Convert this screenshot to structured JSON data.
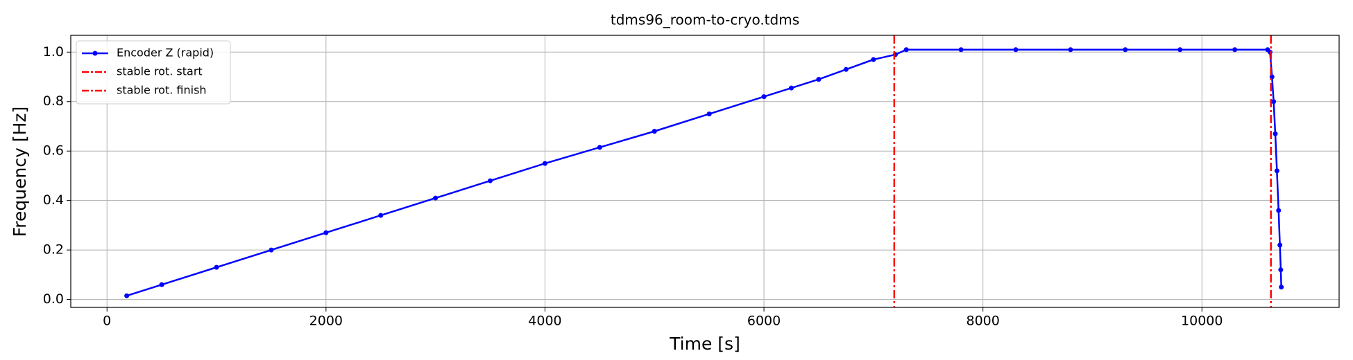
{
  "chart_data": {
    "type": "line",
    "title": "tdms96_room-to-cryo.tdms",
    "xlabel": "Time [s]",
    "ylabel": "Frequency [Hz]",
    "x": [
      180,
      500,
      1000,
      1500,
      2000,
      2500,
      3000,
      3500,
      4000,
      4500,
      5000,
      5500,
      6000,
      6250,
      6500,
      6750,
      7000,
      7200,
      7300,
      7800,
      8300,
      8800,
      9300,
      9800,
      10300,
      10600,
      10622,
      10640,
      10655,
      10670,
      10685,
      10700,
      10712,
      10720,
      10725
    ],
    "series": [
      {
        "name": "Encoder Z (rapid)",
        "color": "#0000ff",
        "values": [
          0.015,
          0.06,
          0.13,
          0.2,
          0.27,
          0.34,
          0.41,
          0.48,
          0.55,
          0.615,
          0.68,
          0.75,
          0.82,
          0.855,
          0.89,
          0.93,
          0.97,
          0.99,
          1.01,
          1.01,
          1.01,
          1.01,
          1.01,
          1.01,
          1.01,
          1.01,
          1.0,
          0.9,
          0.8,
          0.67,
          0.52,
          0.36,
          0.22,
          0.12,
          0.05
        ]
      }
    ],
    "vlines": [
      {
        "name": "stable rot. start",
        "x": 7190,
        "color": "#ff0000"
      },
      {
        "name": "stable rot. finish",
        "x": 10630,
        "color": "#ff0000"
      }
    ],
    "xlim": [
      -331,
      11253
    ],
    "ylim": [
      -0.032,
      1.068
    ],
    "xticks": [
      0,
      2000,
      4000,
      6000,
      8000,
      10000
    ],
    "yticks": [
      {
        "value": 0,
        "label": "0.0"
      },
      0.2,
      0.4,
      0.6,
      0.8,
      {
        "value": 1,
        "label": "1.0"
      }
    ],
    "grid": true,
    "legend": "upper left"
  }
}
